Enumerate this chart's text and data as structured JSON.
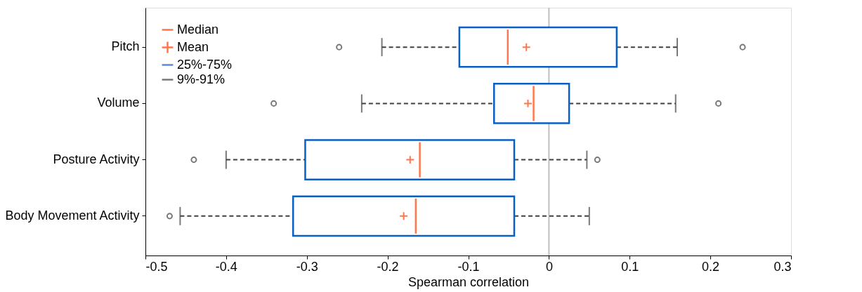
{
  "chart_data": {
    "type": "box",
    "orientation": "horizontal",
    "xlabel": "Spearman correlation",
    "categories": [
      "Pitch",
      "Volume",
      "Posture Activity",
      "Body Movement Activity"
    ],
    "annotations": [
      "Median",
      "Mean",
      "25%-75%",
      "9%-91%"
    ],
    "series": [
      {
        "color": "#0a5fc4",
        "boxes": [
          {
            "low": -0.207,
            "q1": -0.111,
            "median": -0.051,
            "q3": 0.084,
            "high": 0.159,
            "mean": -0.028,
            "outliers": [
              -0.26,
              0.24
            ]
          },
          {
            "low": -0.232,
            "q1": -0.068,
            "median": -0.019,
            "q3": 0.025,
            "high": 0.157,
            "mean": -0.026,
            "outliers": [
              -0.341,
              0.21
            ]
          },
          {
            "low": -0.4,
            "q1": -0.302,
            "median": -0.16,
            "q3": -0.043,
            "high": 0.047,
            "mean": -0.172,
            "outliers": [
              -0.44,
              0.06
            ]
          },
          {
            "low": -0.457,
            "q1": -0.317,
            "median": -0.165,
            "q3": -0.043,
            "high": 0.05,
            "mean": -0.18,
            "outliers": [
              -0.47
            ]
          }
        ]
      }
    ],
    "xlim": [
      -0.5,
      0.3
    ],
    "xticks": [
      -0.5,
      -0.4,
      -0.3,
      -0.2,
      -0.1,
      0,
      0.1,
      0.2,
      0.3
    ],
    "ref_lines": [
      {
        "axis": "x",
        "value": 0,
        "color": "#bfbfbf"
      }
    ]
  }
}
